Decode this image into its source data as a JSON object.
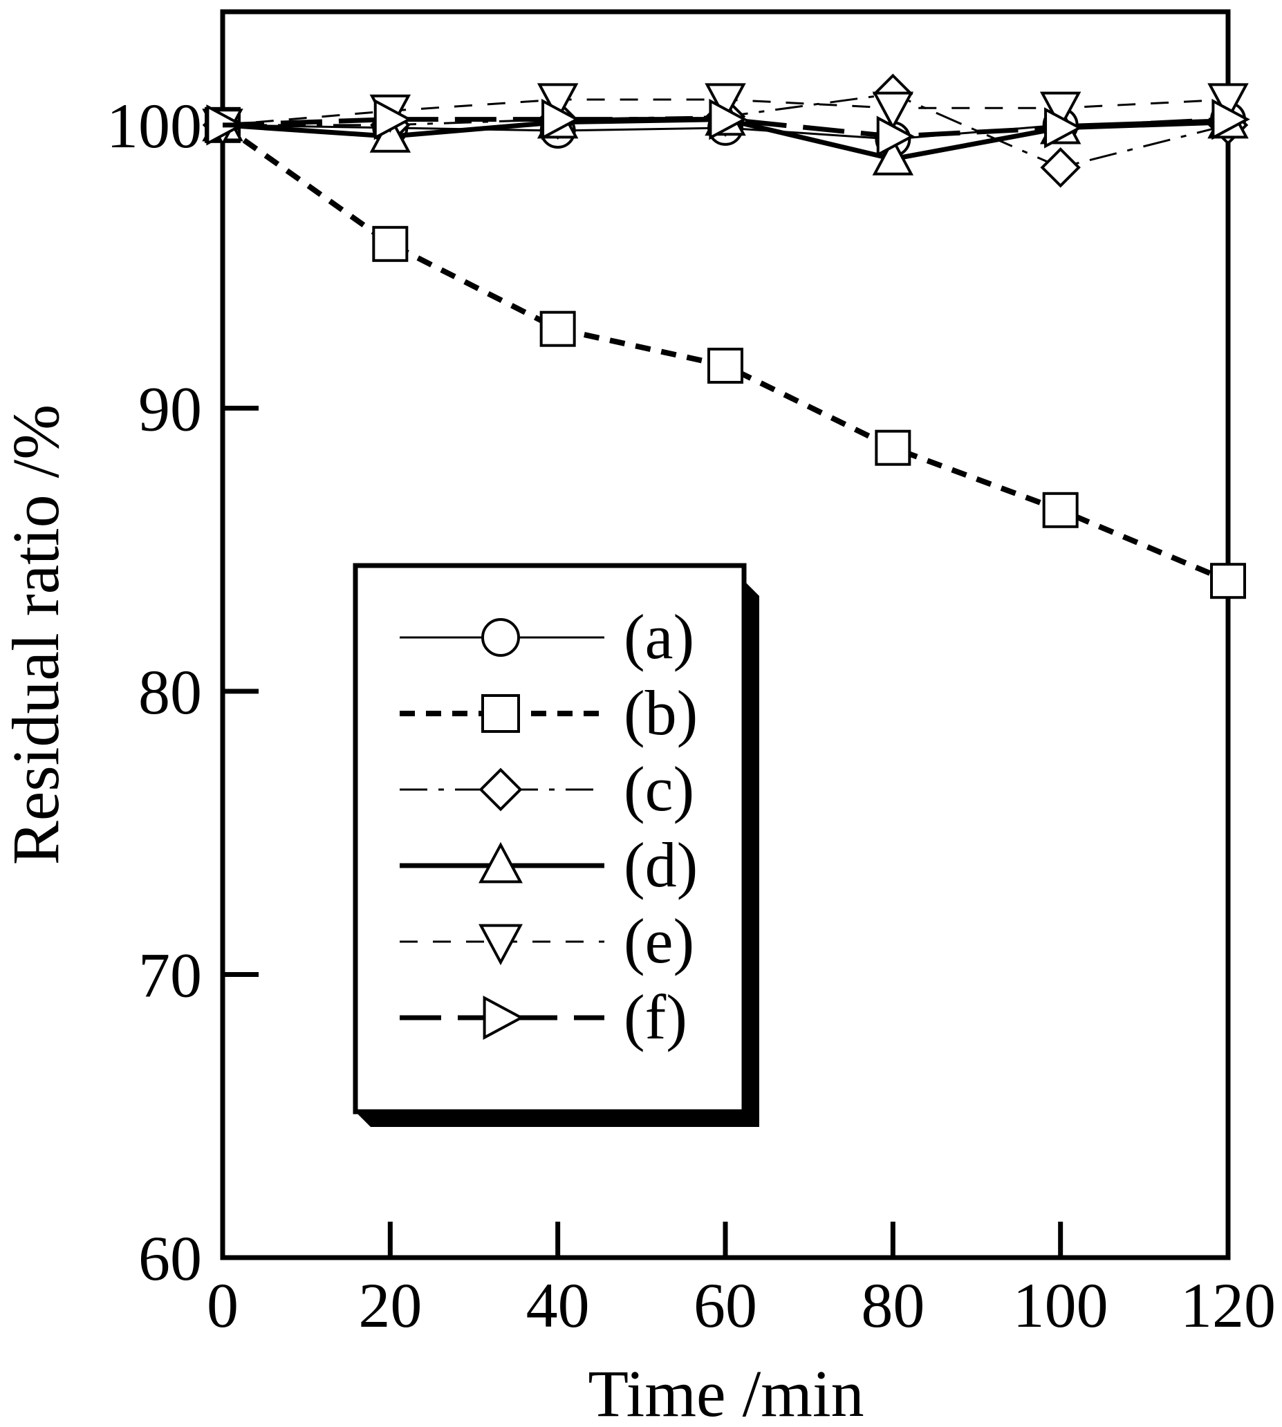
{
  "chart_data": {
    "type": "line",
    "xlabel": "Time  /min",
    "ylabel": "Residual ratio /%",
    "xlim": [
      0,
      120
    ],
    "ylim": [
      60,
      104
    ],
    "x_ticks": [
      0,
      20,
      40,
      60,
      80,
      100,
      120
    ],
    "y_ticks": [
      60,
      70,
      80,
      90,
      100
    ],
    "x_tick_labels": [
      "0",
      "20",
      "40",
      "60",
      "80",
      "100",
      "120"
    ],
    "y_tick_labels": [
      "60",
      "70",
      "80",
      "90",
      "100"
    ],
    "grid": false,
    "legend_position": "lower-left",
    "x": [
      0,
      20,
      40,
      60,
      80,
      100,
      120
    ],
    "series": [
      {
        "name": "(a)",
        "marker": "circle",
        "line_style": "solid-thin",
        "values": [
          100,
          99.9,
          99.8,
          99.9,
          99.5,
          100,
          100.2
        ]
      },
      {
        "name": "(b)",
        "marker": "square",
        "line_style": "dashed-bold",
        "values": [
          100,
          95.8,
          92.8,
          91.5,
          88.6,
          86.4,
          83.9
        ]
      },
      {
        "name": "(c)",
        "marker": "diamond",
        "line_style": "dash-dot-thin",
        "values": [
          100,
          100,
          100.2,
          100.3,
          101.1,
          98.5,
          100
        ]
      },
      {
        "name": "(d)",
        "marker": "triangle-up",
        "line_style": "solid-bold",
        "values": [
          100,
          99.6,
          100.1,
          100.2,
          98.8,
          99.9,
          100.1
        ]
      },
      {
        "name": "(e)",
        "marker": "triangle-down",
        "line_style": "dashed-thin",
        "values": [
          100,
          100.5,
          100.9,
          100.9,
          100.6,
          100.6,
          100.9
        ]
      },
      {
        "name": "(f)",
        "marker": "triangle-right",
        "line_style": "long-dash-bold",
        "values": [
          100,
          100.2,
          100.2,
          100.2,
          99.6,
          99.9,
          100.2
        ]
      }
    ],
    "colors": {
      "ink": "#000000",
      "background": "#ffffff"
    }
  }
}
